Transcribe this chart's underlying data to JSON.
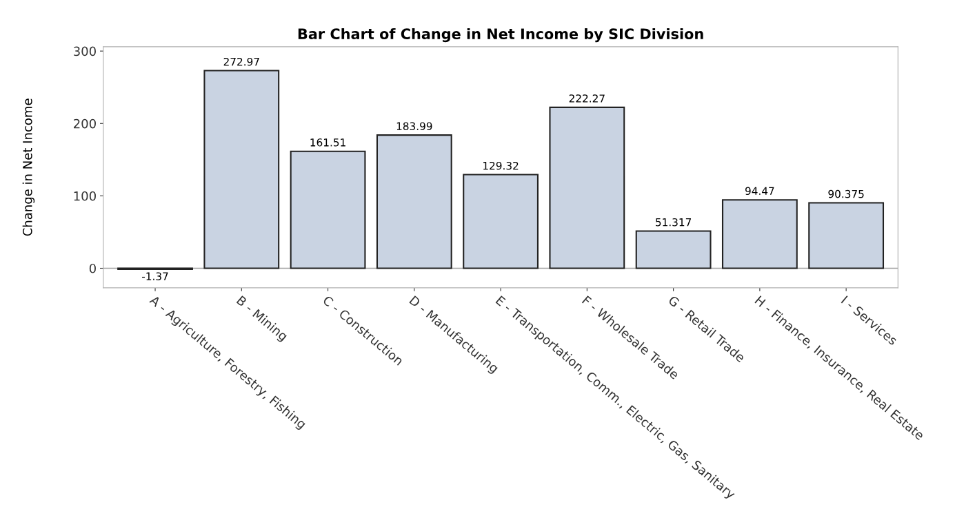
{
  "chart_data": {
    "type": "bar",
    "title": "Bar Chart of Change in Net Income by SIC Division",
    "ylabel": "Change in Net Income",
    "categories": [
      "A - Agriculture, Forestry, Fishing",
      "B - Mining",
      "C - Construction",
      "D - Manufacturing",
      "E - Transportation, Comm., Electric, Gas, Sanitary",
      "F - Wholesale Trade",
      "G - Retail Trade",
      "H - Finance, Insurance, Real Estate",
      "I - Services"
    ],
    "values": [
      -1.37,
      272.97,
      161.51,
      183.99,
      129.32,
      222.27,
      51.317,
      94.47,
      90.375
    ],
    "color": "#c9d3e2",
    "ylim": [
      -27,
      306
    ],
    "yticks": [
      0,
      100,
      200,
      300
    ],
    "ref_lines": [
      {
        "axis": "y",
        "value": 0,
        "color": "#a0a0a0"
      }
    ],
    "data_labels": true,
    "grid": false,
    "legend": false
  }
}
